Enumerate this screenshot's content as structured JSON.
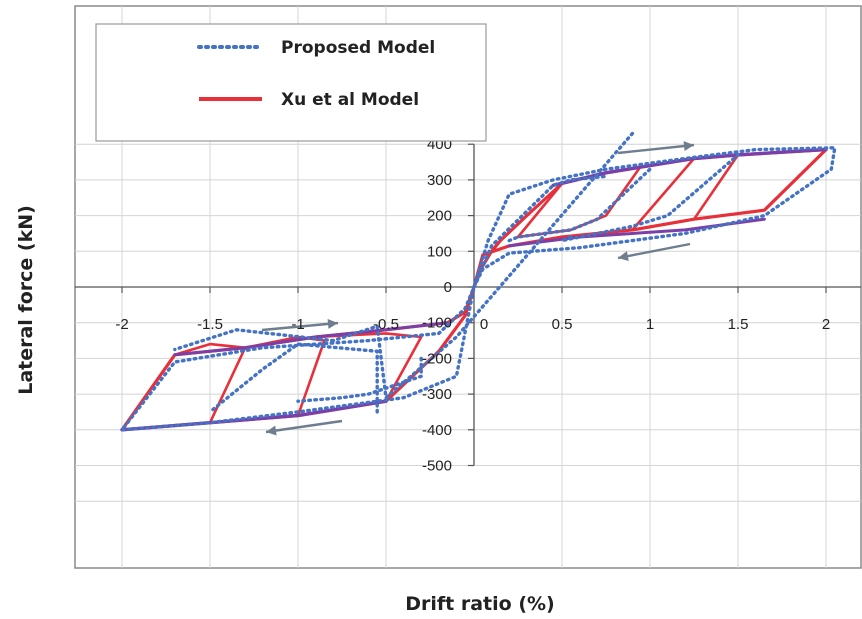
{
  "chart_data": {
    "type": "line",
    "title": "",
    "xlabel": "Drift ratio (%)",
    "ylabel": "Lateral force (kN)",
    "xlim": [
      -2.25,
      2.2
    ],
    "ylim": [
      -700,
      400
    ],
    "x_ticks": [
      "-2",
      "-1.5",
      "-1",
      "-0.5",
      "0",
      "0.5",
      "1",
      "1.5",
      "2"
    ],
    "y_ticks": [
      "-500",
      "-400",
      "-300",
      "-200",
      "-100",
      "0",
      "100",
      "200",
      "300",
      "400"
    ],
    "grid": true,
    "legend_position": "top-left",
    "series": [
      {
        "name": "Proposed Model",
        "color": "#4472c4",
        "style": "dotted",
        "x": [
          0,
          0.08,
          0.2,
          0.45,
          0.75,
          1.2,
          1.6,
          2.05,
          2.03,
          1.65,
          1.2,
          0.6,
          0.2,
          0.05,
          0,
          -0.05,
          -0.2,
          -0.6,
          -1.2,
          -1.7,
          -2.0,
          -1.5,
          -1.0,
          -0.4,
          -0.1,
          0,
          0.1,
          0.45,
          0.55,
          0.75,
          0.4,
          0.2,
          0.25,
          0.55,
          0.7,
          1.0,
          0.7,
          0.55,
          0.5,
          0.9,
          1.1,
          1.5,
          1.1,
          0.9,
          -0.1,
          -0.5,
          -0.55,
          -0.8,
          -0.45,
          -0.3,
          -0.3,
          -0.6,
          -0.75,
          -1.0,
          -0.75,
          -0.55,
          -0.55,
          -1.0,
          -1.2,
          -1.5,
          -1.1,
          -0.8,
          -1.35,
          -1.7,
          -1.55
        ],
        "y": [
          0,
          130,
          260,
          300,
          330,
          360,
          385,
          390,
          330,
          200,
          150,
          110,
          95,
          50,
          0,
          -60,
          -130,
          -150,
          -170,
          -210,
          -400,
          -380,
          -350,
          -310,
          -250,
          0,
          115,
          285,
          300,
          310,
          null,
          130,
          140,
          160,
          190,
          330,
          null,
          140,
          130,
          170,
          200,
          370,
          null,
          430,
          -140,
          -310,
          -110,
          -150,
          null,
          -200,
          -250,
          -300,
          -310,
          -320,
          null,
          -350,
          -180,
          -160,
          -230,
          -350,
          null,
          -150,
          -120,
          -175,
          null
        ]
      },
      {
        "name": "Xu et al Model",
        "color": "#e8303a",
        "style": "solid",
        "x": [
          0,
          0.05,
          0.1,
          0.15,
          0.3,
          0.5,
          0.75,
          1.0,
          1.25,
          1.5,
          2.0,
          1.65,
          1.25,
          0.9,
          0.5,
          0.2,
          0.05,
          0,
          -0.05,
          -0.15,
          -0.5,
          -0.9,
          -1.3,
          -1.7,
          -2.0,
          -1.5,
          -1.0,
          -0.5,
          -0.2,
          -0.05,
          0
        ],
        "y": [
          0,
          60,
          100,
          130,
          200,
          290,
          320,
          340,
          360,
          370,
          385,
          215,
          190,
          160,
          140,
          115,
          90,
          0,
          -70,
          -100,
          -120,
          -140,
          -170,
          -190,
          -400,
          -380,
          -360,
          -320,
          -180,
          -80,
          0
        ]
      }
    ]
  },
  "legend": {
    "proposed_label": "Proposed Model",
    "xu_label": "Xu et al Model"
  },
  "axes": {
    "x_title": "Drift ratio (%)",
    "y_title": "Lateral force (kN)"
  },
  "colors": {
    "proposed": "#4472c4",
    "xu": "#e8303a",
    "envelope": "#7b3fa8",
    "arrow": "#6e7e8e"
  }
}
